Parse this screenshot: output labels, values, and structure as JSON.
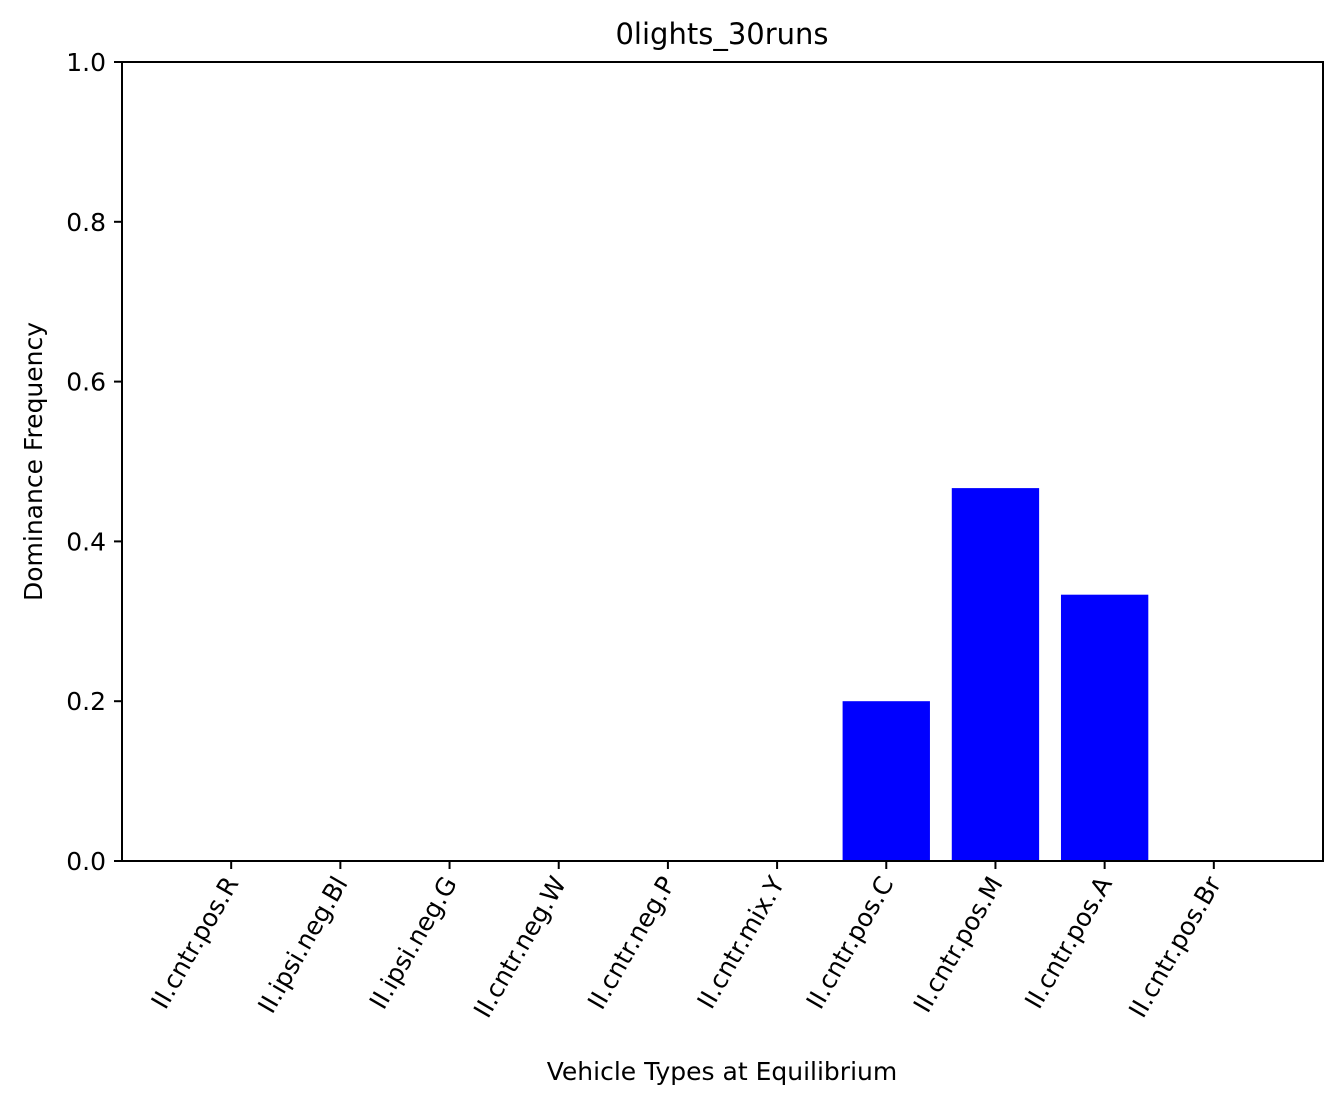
{
  "chart_data": {
    "type": "bar",
    "title": "0lights_30runs",
    "xlabel": "Vehicle Types at Equilibrium",
    "ylabel": "Dominance Frequency",
    "categories": [
      "II.cntr.pos.R",
      "II.ipsi.neg.Bl",
      "II.ipsi.neg.G",
      "II.cntr.neg.W",
      "II.cntr.neg.P",
      "II.cntr.mix.Y",
      "II.cntr.pos.C",
      "II.cntr.pos.M",
      "II.cntr.pos.A",
      "II.cntr.pos.Br"
    ],
    "values": [
      0,
      0,
      0,
      0,
      0,
      0,
      0.2,
      0.4667,
      0.3333,
      0
    ],
    "ylim": [
      0,
      1
    ],
    "yticks": [
      "0.0",
      "0.2",
      "0.4",
      "0.6",
      "0.8",
      "1.0"
    ],
    "bar_color": "#0000ff",
    "grid": false,
    "legend": "none"
  }
}
